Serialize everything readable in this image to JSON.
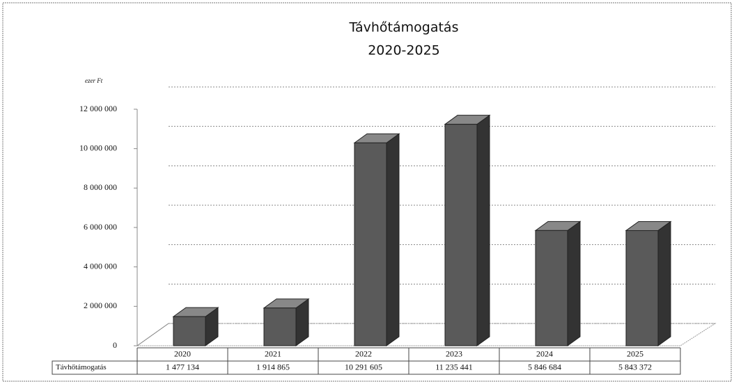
{
  "chart_data": {
    "type": "bar3d",
    "title": "Távhőtámogatás",
    "subtitle": "2020-2025",
    "y_axis_label": "ezer Ft",
    "categories": [
      "2020",
      "2021",
      "2022",
      "2023",
      "2024",
      "2025"
    ],
    "series": [
      {
        "name": "Távhőtámogatás",
        "color": "#5a5a5a",
        "values": [
          1477134,
          1914865,
          10291605,
          11235441,
          5846684,
          5843372
        ],
        "value_labels": [
          "1 477 134",
          "1 914 865",
          "10 291 605",
          "11 235 441",
          "5 846 684",
          "5 843 372"
        ]
      }
    ],
    "ylim": [
      0,
      12000000
    ],
    "yticks": [
      0,
      {
        "value": 2000000,
        "label": "2 000 000"
      },
      {
        "value": 4000000,
        "label": "4 000 000"
      },
      {
        "value": 6000000,
        "label": "6 000 000"
      },
      {
        "value": 8000000,
        "label": "8 000 000"
      },
      {
        "value": 10000000,
        "label": "10 000 000"
      },
      {
        "value": 12000000,
        "label": "12 000 000"
      }
    ],
    "grid": true
  }
}
